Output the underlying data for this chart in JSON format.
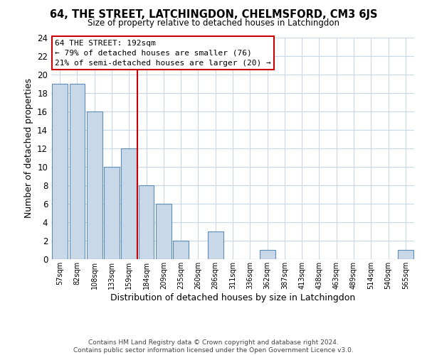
{
  "title": "64, THE STREET, LATCHINGDON, CHELMSFORD, CM3 6JS",
  "subtitle": "Size of property relative to detached houses in Latchingdon",
  "xlabel": "Distribution of detached houses by size in Latchingdon",
  "ylabel": "Number of detached properties",
  "bar_labels": [
    "57sqm",
    "82sqm",
    "108sqm",
    "133sqm",
    "159sqm",
    "184sqm",
    "209sqm",
    "235sqm",
    "260sqm",
    "286sqm",
    "311sqm",
    "336sqm",
    "362sqm",
    "387sqm",
    "413sqm",
    "438sqm",
    "463sqm",
    "489sqm",
    "514sqm",
    "540sqm",
    "565sqm"
  ],
  "bar_values": [
    19,
    19,
    16,
    10,
    12,
    8,
    6,
    2,
    0,
    3,
    0,
    0,
    1,
    0,
    0,
    0,
    0,
    0,
    0,
    0,
    1
  ],
  "bar_color": "#c8d8e8",
  "bar_edge_color": "#5b8db8",
  "vline_color": "#cc0000",
  "annotation_line1": "64 THE STREET: 192sqm",
  "annotation_line2": "← 79% of detached houses are smaller (76)",
  "annotation_line3": "21% of semi-detached houses are larger (20) →",
  "ylim": [
    0,
    24
  ],
  "yticks": [
    0,
    2,
    4,
    6,
    8,
    10,
    12,
    14,
    16,
    18,
    20,
    22,
    24
  ],
  "footer1": "Contains HM Land Registry data © Crown copyright and database right 2024.",
  "footer2": "Contains public sector information licensed under the Open Government Licence v3.0.",
  "background_color": "#ffffff",
  "grid_color": "#c8d8e8"
}
